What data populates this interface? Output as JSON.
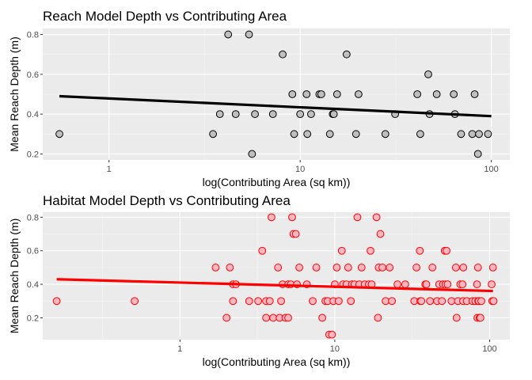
{
  "colors": {
    "panel": "#ebebeb",
    "grid_major": "#ffffff",
    "grid_minor": "#f5f5f5"
  },
  "chart_data": [
    {
      "type": "scatter",
      "title": "Reach Model Depth vs Contributing Area",
      "xlabel": "log(Contributing Area (sq km))",
      "ylabel": "Mean Reach Depth (m)",
      "x_scale": "log10",
      "xlim": [
        0.45,
        125
      ],
      "ylim": [
        0.17,
        0.83
      ],
      "x_ticks": [
        {
          "value": 1,
          "label": "1"
        },
        {
          "value": 10,
          "label": "10"
        },
        {
          "value": 100,
          "label": "100"
        }
      ],
      "y_ticks": [
        {
          "value": 0.2,
          "label": "0.2"
        },
        {
          "value": 0.4,
          "label": "0.4"
        },
        {
          "value": 0.6,
          "label": "0.6"
        },
        {
          "value": 0.8,
          "label": "0.8"
        }
      ],
      "grid": true,
      "point_fill": "#bfbfbf",
      "point_stroke": "#000000",
      "trend_color": "#000000",
      "trend": [
        [
          0.55,
          0.49
        ],
        [
          100,
          0.39
        ]
      ],
      "points": [
        [
          0.55,
          0.3
        ],
        [
          3.5,
          0.3
        ],
        [
          3.8,
          0.4
        ],
        [
          4.2,
          0.8
        ],
        [
          4.6,
          0.4
        ],
        [
          5.4,
          0.8
        ],
        [
          5.6,
          0.2
        ],
        [
          5.8,
          0.4
        ],
        [
          7.2,
          0.4
        ],
        [
          8.1,
          0.7
        ],
        [
          9.1,
          0.5
        ],
        [
          9.3,
          0.3
        ],
        [
          10.0,
          0.4
        ],
        [
          10.8,
          0.5
        ],
        [
          10.9,
          0.3
        ],
        [
          11.4,
          0.4
        ],
        [
          12.6,
          0.5
        ],
        [
          12.9,
          0.5
        ],
        [
          14.3,
          0.3
        ],
        [
          14.8,
          0.4
        ],
        [
          15.0,
          0.4
        ],
        [
          15.6,
          0.5
        ],
        [
          17.5,
          0.7
        ],
        [
          19.6,
          0.3
        ],
        [
          20.2,
          0.5
        ],
        [
          27.9,
          0.3
        ],
        [
          31.4,
          0.4
        ],
        [
          41.0,
          0.5
        ],
        [
          42.5,
          0.3
        ],
        [
          46.8,
          0.6
        ],
        [
          47.5,
          0.4
        ],
        [
          51.8,
          0.5
        ],
        [
          63.6,
          0.5
        ],
        [
          64.5,
          0.4
        ],
        [
          69.5,
          0.3
        ],
        [
          79.5,
          0.3
        ],
        [
          81.8,
          0.5
        ],
        [
          85.1,
          0.2
        ],
        [
          86.2,
          0.3
        ],
        [
          96.1,
          0.3
        ]
      ]
    },
    {
      "type": "scatter",
      "title": "Habitat Model Depth vs Contributing Area",
      "xlabel": "log(Contributing Area (sq km))",
      "ylabel": "Mean Reach Depth (m)",
      "x_scale": "log10",
      "xlim": [
        0.13,
        135
      ],
      "ylim": [
        0.07,
        0.83
      ],
      "x_ticks": [
        {
          "value": 1,
          "label": "1"
        },
        {
          "value": 10,
          "label": "10"
        },
        {
          "value": 100,
          "label": "100"
        }
      ],
      "y_ticks": [
        {
          "value": 0.2,
          "label": "0.2"
        },
        {
          "value": 0.4,
          "label": "0.4"
        },
        {
          "value": 0.6,
          "label": "0.6"
        },
        {
          "value": 0.8,
          "label": "0.8"
        }
      ],
      "grid": true,
      "point_fill": "#ffb6c1",
      "point_stroke": "#ff0000",
      "trend_color": "#ff0000",
      "trend": [
        [
          0.16,
          0.43
        ],
        [
          105,
          0.36
        ]
      ],
      "points": [
        [
          0.16,
          0.3
        ],
        [
          0.51,
          0.3
        ],
        [
          1.7,
          0.5
        ],
        [
          2.0,
          0.2
        ],
        [
          2.1,
          0.5
        ],
        [
          2.2,
          0.3
        ],
        [
          2.2,
          0.4
        ],
        [
          2.3,
          0.4
        ],
        [
          2.8,
          0.3
        ],
        [
          3.2,
          0.3
        ],
        [
          3.4,
          0.6
        ],
        [
          3.6,
          0.3
        ],
        [
          3.6,
          0.2
        ],
        [
          3.8,
          0.3
        ],
        [
          3.9,
          0.8
        ],
        [
          4.0,
          0.2
        ],
        [
          4.3,
          0.5
        ],
        [
          4.4,
          0.2
        ],
        [
          4.5,
          0.3
        ],
        [
          4.6,
          0.4
        ],
        [
          4.8,
          0.2
        ],
        [
          5.0,
          0.2
        ],
        [
          5.0,
          0.4
        ],
        [
          5.2,
          0.4
        ],
        [
          5.3,
          0.8
        ],
        [
          5.4,
          0.7
        ],
        [
          5.6,
          0.7
        ],
        [
          5.7,
          0.4
        ],
        [
          5.9,
          0.5
        ],
        [
          6.6,
          0.4
        ],
        [
          7.2,
          0.3
        ],
        [
          7.6,
          0.5
        ],
        [
          8.3,
          0.2
        ],
        [
          8.7,
          0.3
        ],
        [
          9.0,
          0.3
        ],
        [
          9.2,
          0.1
        ],
        [
          9.6,
          0.1
        ],
        [
          9.8,
          0.3
        ],
        [
          10.0,
          0.4
        ],
        [
          10.3,
          0.5
        ],
        [
          10.6,
          0.3
        ],
        [
          11.1,
          0.6
        ],
        [
          11.3,
          0.4
        ],
        [
          11.9,
          0.4
        ],
        [
          12.2,
          0.5
        ],
        [
          12.7,
          0.3
        ],
        [
          12.9,
          0.4
        ],
        [
          13.4,
          0.4
        ],
        [
          14.0,
          0.8
        ],
        [
          14.4,
          0.4
        ],
        [
          14.9,
          0.5
        ],
        [
          15.6,
          0.4
        ],
        [
          16.6,
          0.4
        ],
        [
          17.0,
          0.6
        ],
        [
          17.3,
          0.4
        ],
        [
          18.6,
          0.8
        ],
        [
          19.0,
          0.2
        ],
        [
          19.2,
          0.5
        ],
        [
          19.7,
          0.7
        ],
        [
          20.3,
          0.5
        ],
        [
          21.3,
          0.3
        ],
        [
          22.6,
          0.5
        ],
        [
          23.4,
          0.3
        ],
        [
          25.4,
          0.4
        ],
        [
          28.5,
          0.4
        ],
        [
          32.6,
          0.3
        ],
        [
          33.7,
          0.5
        ],
        [
          35.4,
          0.6
        ],
        [
          35.7,
          0.3
        ],
        [
          36.2,
          0.3
        ],
        [
          38.4,
          0.4
        ],
        [
          39.0,
          0.4
        ],
        [
          41.2,
          0.3
        ],
        [
          42.7,
          0.5
        ],
        [
          45.8,
          0.3
        ],
        [
          47.2,
          0.4
        ],
        [
          49.2,
          0.3
        ],
        [
          50.0,
          0.4
        ],
        [
          51.3,
          0.6
        ],
        [
          51.8,
          0.4
        ],
        [
          52.7,
          0.6
        ],
        [
          53.5,
          0.4
        ],
        [
          56.7,
          0.3
        ],
        [
          60.5,
          0.5
        ],
        [
          61.2,
          0.2
        ],
        [
          62.4,
          0.3
        ],
        [
          64.6,
          0.4
        ],
        [
          66.8,
          0.4
        ],
        [
          67.4,
          0.3
        ],
        [
          67.6,
          0.5
        ],
        [
          71.2,
          0.3
        ],
        [
          77.4,
          0.3
        ],
        [
          80.8,
          0.3
        ],
        [
          82.8,
          0.4
        ],
        [
          83.3,
          0.2
        ],
        [
          84.1,
          0.5
        ],
        [
          84.4,
          0.3
        ],
        [
          84.8,
          0.3
        ],
        [
          85.0,
          0.3
        ],
        [
          86.2,
          0.2
        ],
        [
          87.2,
          0.2
        ],
        [
          88.4,
          0.3
        ],
        [
          103.0,
          0.4
        ],
        [
          104.0,
          0.3
        ],
        [
          105.0,
          0.5
        ],
        [
          106.0,
          0.3
        ]
      ]
    }
  ]
}
